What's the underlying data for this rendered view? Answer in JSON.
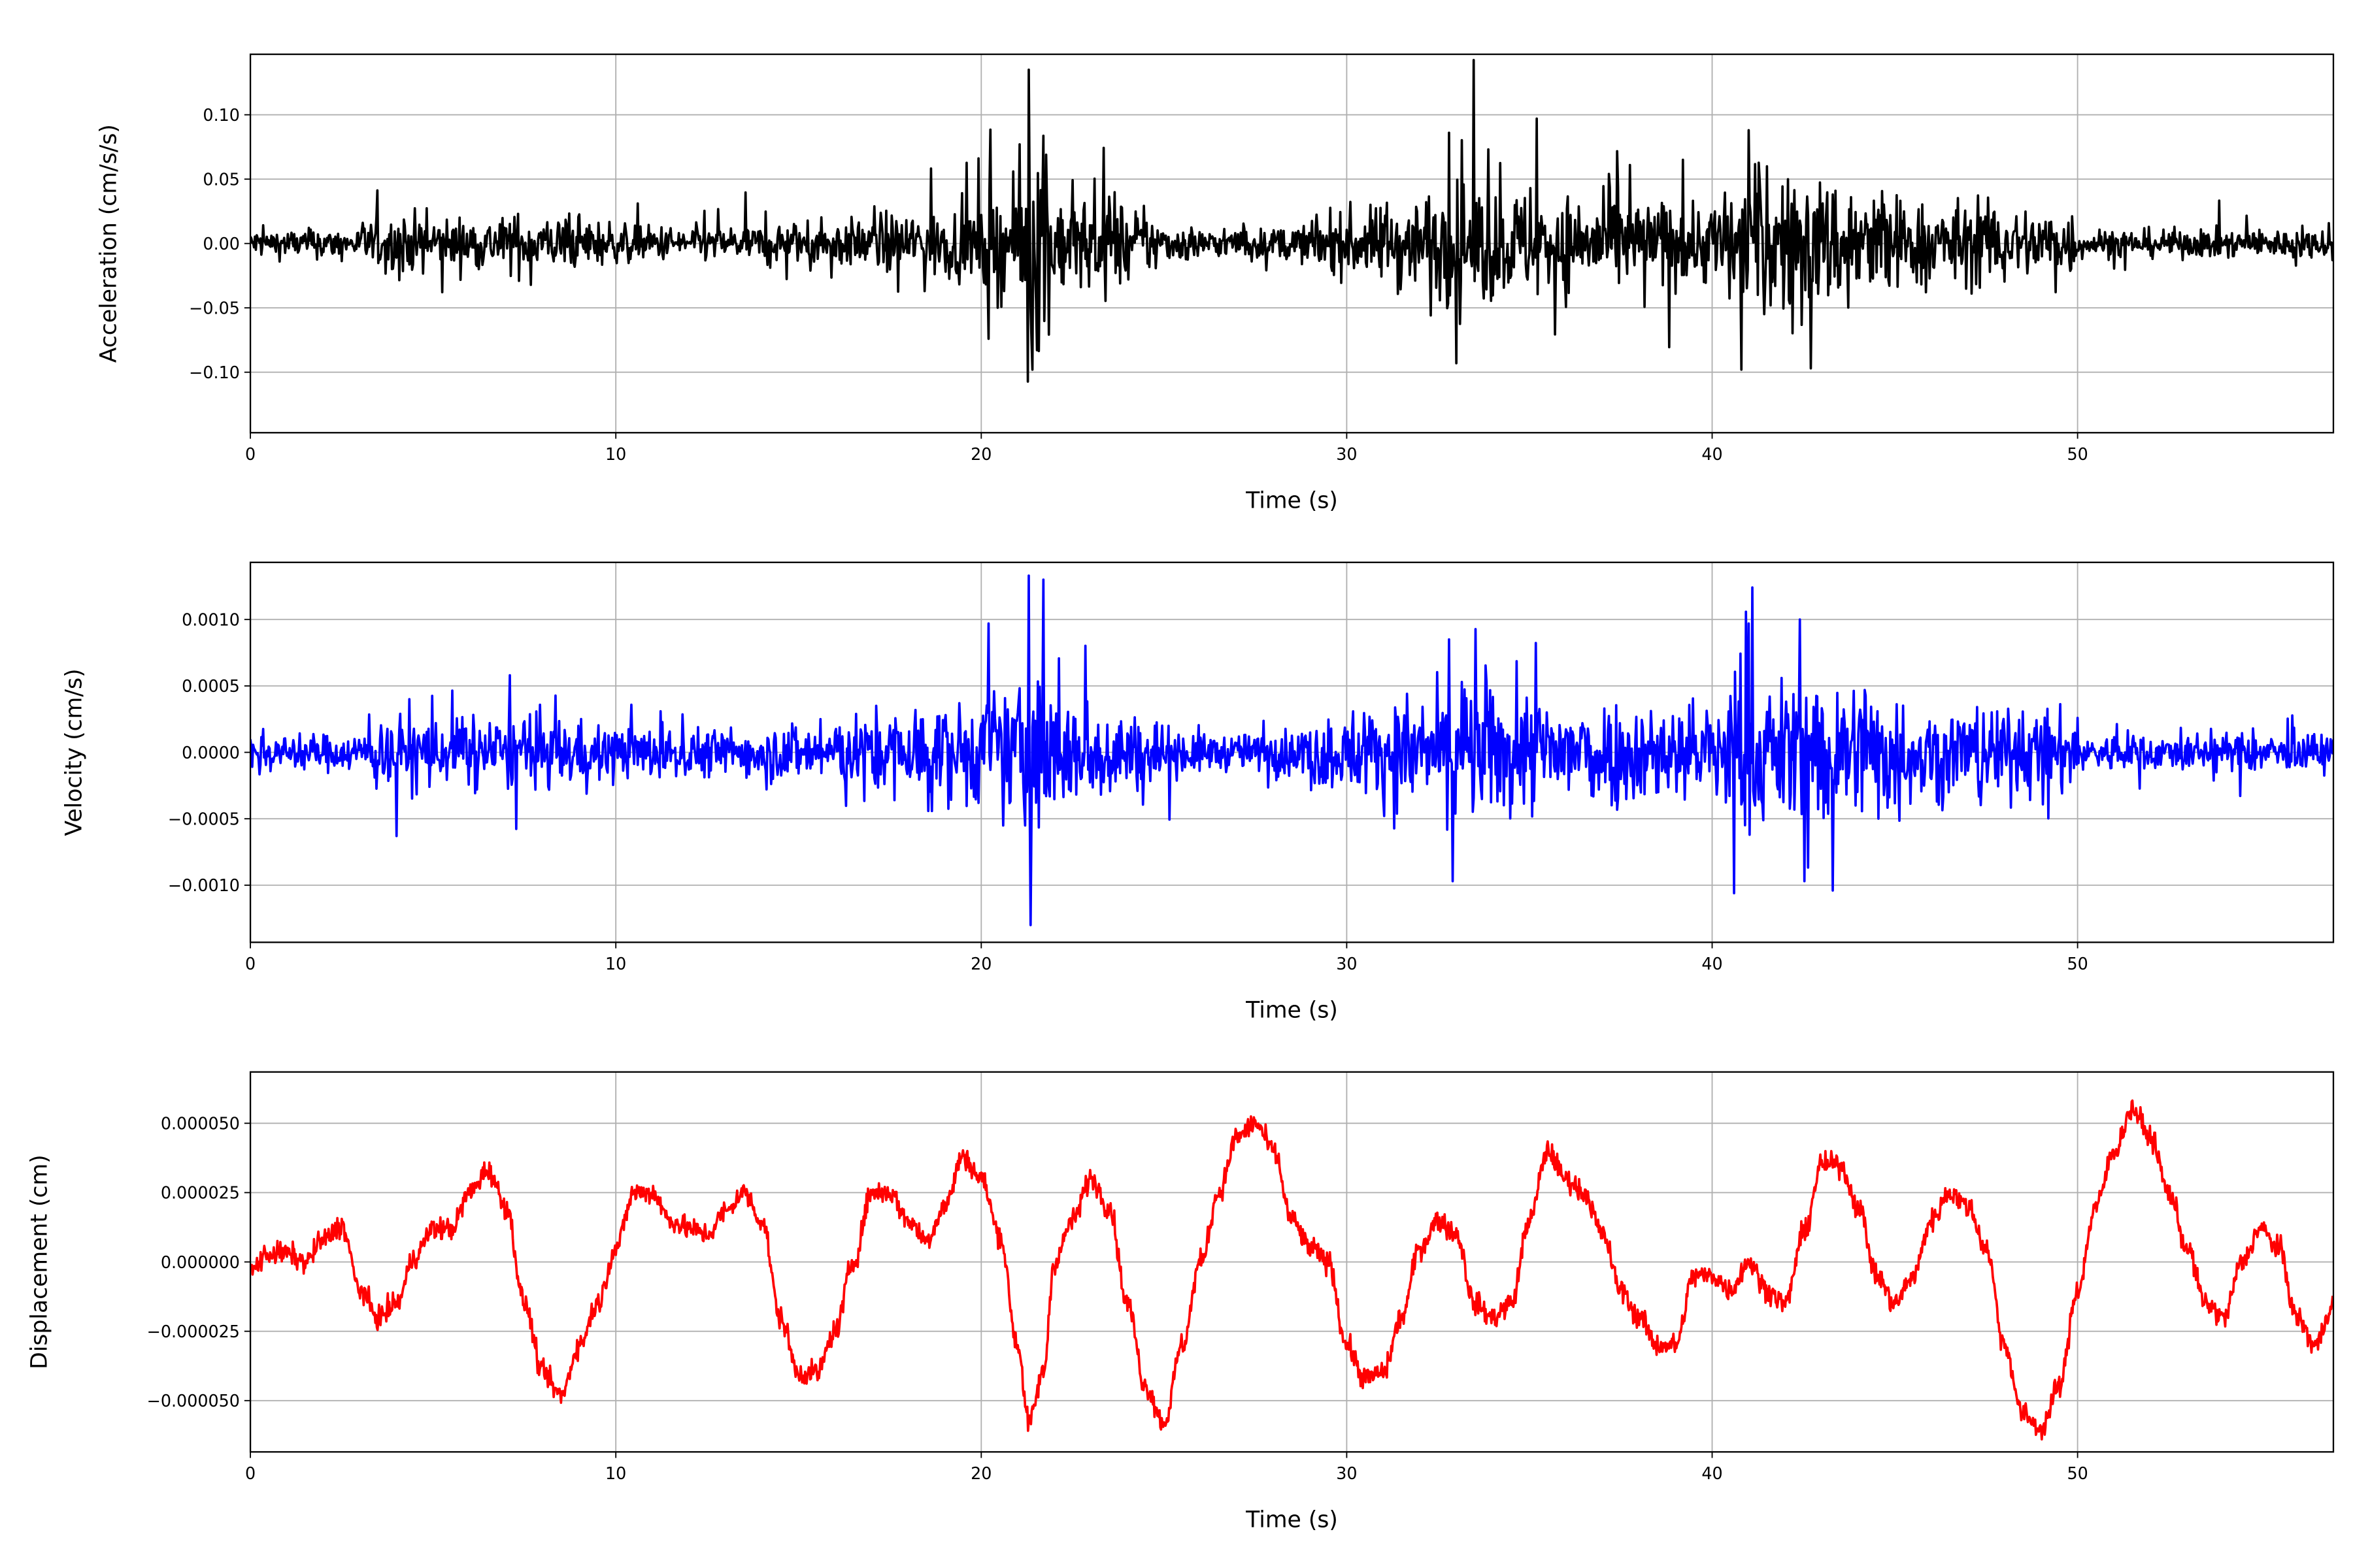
{
  "chart_data": [
    {
      "type": "line",
      "title": "",
      "xlabel": "Time (s)",
      "ylabel": "Acceleration (cm/s/s)",
      "series_color": "#000000",
      "xlim": [
        0,
        57
      ],
      "ylim": [
        -0.147,
        0.147
      ],
      "xticks": [
        0,
        10,
        20,
        30,
        40,
        50
      ],
      "xtick_labels": [
        "0",
        "10",
        "20",
        "30",
        "40",
        "50"
      ],
      "yticks": [
        0.1,
        0.05,
        0.0,
        -0.05,
        -0.1
      ],
      "ytick_labels": [
        "0.10",
        "0.05",
        "0.00",
        "−0.05",
        "−0.10"
      ],
      "grid": true,
      "envelope_per_second": [
        0.012,
        0.012,
        0.012,
        0.02,
        0.025,
        0.022,
        0.022,
        0.025,
        0.022,
        0.02,
        0.015,
        0.015,
        0.015,
        0.015,
        0.018,
        0.018,
        0.02,
        0.025,
        0.03,
        0.03,
        0.045,
        0.08,
        0.04,
        0.035,
        0.025,
        0.015,
        0.012,
        0.012,
        0.015,
        0.025,
        0.03,
        0.04,
        0.045,
        0.05,
        0.045,
        0.045,
        0.04,
        0.04,
        0.035,
        0.035,
        0.05,
        0.06,
        0.055,
        0.055,
        0.05,
        0.035,
        0.035,
        0.035,
        0.03,
        0.03,
        0.012,
        0.012,
        0.012,
        0.012,
        0.012,
        0.012,
        0.012
      ],
      "peaks": [
        [
          21.3,
          0.135
        ],
        [
          21.4,
          -0.098
        ],
        [
          20.2,
          -0.074
        ],
        [
          35.2,
          0.097
        ],
        [
          32.8,
          0.086
        ],
        [
          41.0,
          0.088
        ],
        [
          40.8,
          -0.098
        ],
        [
          42.7,
          -0.097
        ],
        [
          33.0,
          -0.093
        ],
        [
          39.2,
          0.065
        ]
      ]
    },
    {
      "type": "line",
      "title": "",
      "xlabel": "Time (s)",
      "ylabel": "Velocity (cm/s)",
      "series_color": "#0000ff",
      "xlim": [
        0,
        57
      ],
      "ylim": [
        -0.00143,
        0.00143
      ],
      "xticks": [
        0,
        10,
        20,
        30,
        40,
        50
      ],
      "xtick_labels": [
        "0",
        "10",
        "20",
        "30",
        "40",
        "50"
      ],
      "yticks": [
        0.001,
        0.0005,
        0.0,
        -0.0005,
        -0.001
      ],
      "ytick_labels": [
        "0.0010",
        "0.0005",
        "0.0000",
        "−0.0005",
        "−0.0010"
      ],
      "grid": true,
      "envelope_per_second": [
        0.00015,
        0.00015,
        0.00015,
        0.00025,
        0.0003,
        0.00028,
        0.00028,
        0.0003,
        0.00028,
        0.00025,
        0.0002,
        0.0002,
        0.0002,
        0.0002,
        0.00025,
        0.00025,
        0.00028,
        0.00035,
        0.0004,
        0.0004,
        0.0005,
        0.0007,
        0.00045,
        0.0004,
        0.0003,
        0.0002,
        0.00015,
        0.00015,
        0.0002,
        0.0003,
        0.00035,
        0.00045,
        0.0005,
        0.00055,
        0.0005,
        0.0005,
        0.00045,
        0.00045,
        0.0004,
        0.0004,
        0.00055,
        0.0006,
        0.0006,
        0.0006,
        0.00055,
        0.0004,
        0.0004,
        0.0004,
        0.00035,
        0.00035,
        0.00015,
        0.00015,
        0.00015,
        0.00015,
        0.00015,
        0.00015,
        0.00015
      ],
      "peaks": [
        [
          21.3,
          0.00133
        ],
        [
          21.35,
          -0.0013
        ],
        [
          20.2,
          0.00097
        ],
        [
          32.8,
          0.00085
        ],
        [
          32.9,
          -0.00097
        ],
        [
          40.6,
          -0.00106
        ],
        [
          42.4,
          0.001
        ],
        [
          43.3,
          -0.00104
        ],
        [
          41.0,
          0.00097
        ],
        [
          7.1,
          0.00058
        ],
        [
          4.0,
          -0.00063
        ]
      ]
    },
    {
      "type": "line",
      "title": "",
      "xlabel": "Time (s)",
      "ylabel": "Displacement (cm)",
      "series_color": "#ff0000",
      "xlim": [
        0,
        57
      ],
      "ylim": [
        -6.85e-05,
        6.85e-05
      ],
      "xticks": [
        0,
        10,
        20,
        30,
        40,
        50
      ],
      "xtick_labels": [
        "0",
        "10",
        "20",
        "30",
        "40",
        "50"
      ],
      "yticks": [
        5e-05,
        2.5e-05,
        0.0,
        -2.5e-05,
        -5e-05
      ],
      "ytick_labels": [
        "0.000050",
        "0.000025",
        "0.000000",
        "−0.000025",
        "−0.000050"
      ],
      "grid": true,
      "x": [
        0,
        0.5,
        1,
        1.5,
        2,
        2.5,
        3,
        3.5,
        4,
        4.5,
        5,
        5.5,
        6,
        6.5,
        7,
        7.5,
        8,
        8.5,
        9,
        9.5,
        10,
        10.5,
        11,
        11.5,
        12,
        12.5,
        13,
        13.5,
        14,
        14.5,
        15,
        15.5,
        16,
        16.5,
        17,
        17.5,
        18,
        18.5,
        19,
        19.5,
        20,
        20.5,
        21,
        21.3,
        21.7,
        22,
        22.5,
        23,
        23.5,
        24,
        24.5,
        25,
        25.5,
        26,
        26.5,
        27,
        27.5,
        28,
        28.5,
        29,
        29.5,
        30,
        30.5,
        31,
        31.5,
        32,
        32.5,
        33,
        33.5,
        34,
        34.5,
        35,
        35.5,
        36,
        36.5,
        37,
        37.5,
        38,
        38.5,
        39,
        39.5,
        40,
        40.5,
        41,
        41.5,
        42,
        42.5,
        43,
        43.5,
        44,
        44.5,
        45,
        45.5,
        46,
        46.5,
        47,
        47.5,
        48,
        48.5,
        49,
        49.5,
        50,
        50.5,
        51,
        51.5,
        52,
        52.5,
        53,
        53.5,
        54,
        54.5,
        55,
        55.5,
        56,
        56.5,
        57
      ],
      "y": [
        -3e-06,
        3e-06,
        3e-06,
        0.0,
        8e-06,
        1.3e-05,
        -1e-05,
        -2e-05,
        -1.5e-05,
        2e-06,
        1.2e-05,
        1.2e-05,
        2.5e-05,
        3.3e-05,
        2e-05,
        -1.5e-05,
        -4e-05,
        -4.8e-05,
        -3e-05,
        -1.5e-05,
        5e-06,
        2.5e-05,
        2.5e-05,
        1.5e-05,
        1.2e-05,
        1e-05,
        1.8e-05,
        2.5e-05,
        1.5e-05,
        -2e-05,
        -4e-05,
        -4e-05,
        -2.5e-05,
        0.0,
        2.5e-05,
        2.5e-05,
        1.5e-05,
        8e-06,
        2e-05,
        3.8e-05,
        3e-05,
        1e-05,
        -3e-05,
        -5.8e-05,
        -4e-05,
        0.0,
        1.5e-05,
        3e-05,
        2e-05,
        -1.5e-05,
        -4.5e-05,
        -5.8e-05,
        -3e-05,
        0.0,
        2.5e-05,
        4.5e-05,
        5e-05,
        4e-05,
        1.5e-05,
        5e-06,
        0.0,
        -3e-05,
        -4.2e-05,
        -4e-05,
        -2e-05,
        5e-06,
        1.5e-05,
        1e-05,
        -1.5e-05,
        -2e-05,
        -1.5e-05,
        1.5e-05,
        4e-05,
        3e-05,
        2.5e-05,
        1e-05,
        -1e-05,
        -2e-05,
        -3e-05,
        -3e-05,
        -5e-06,
        -5e-06,
        -1e-05,
        0.0,
        -1e-05,
        -1.5e-05,
        1e-05,
        3.5e-05,
        3.5e-05,
        2e-05,
        -5e-06,
        -1.5e-05,
        -5e-06,
        1.5e-05,
        2.5e-05,
        2e-05,
        5e-06,
        -3e-05,
        -5.5e-05,
        -6e-05,
        -4.5e-05,
        -1e-05,
        2e-05,
        4e-05,
        5.5e-05,
        4.5e-05,
        2.5e-05,
        5e-06,
        -1.5e-05,
        -2e-05,
        0.0,
        1.2e-05,
        5e-06,
        -2e-05,
        -3e-05,
        -1.5e-05
      ]
    }
  ]
}
